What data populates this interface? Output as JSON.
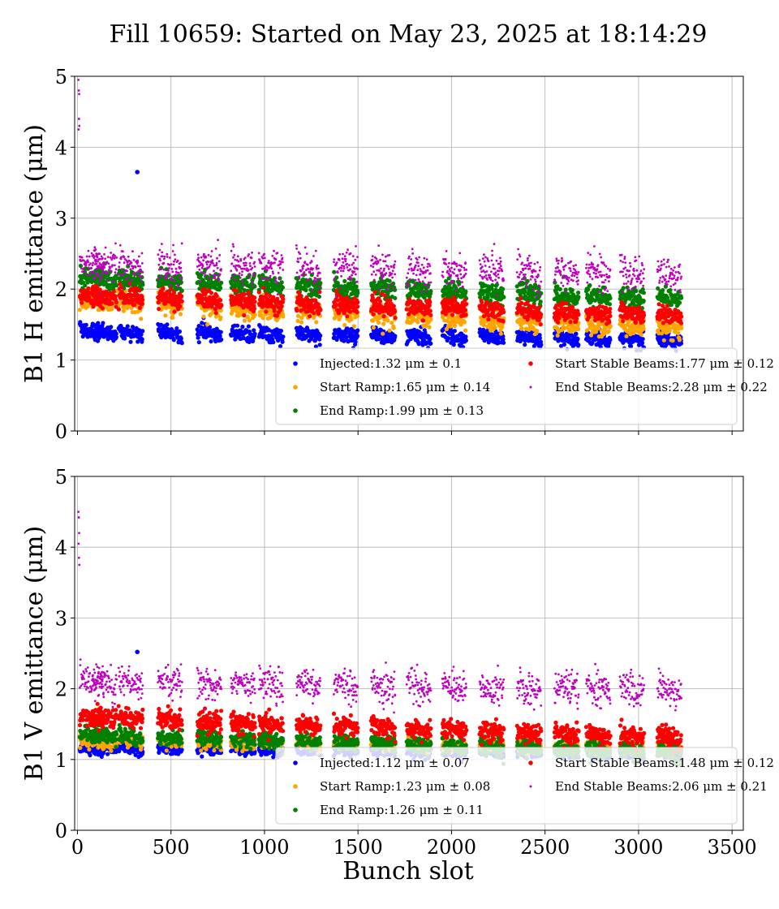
{
  "figure": {
    "suptitle": "Fill 10659: Started on May 23, 2025 at 18:14:29",
    "xlabel": "Bunch slot"
  },
  "chart_data": [
    {
      "type": "scatter",
      "ylabel": "B1 H emittance (μm)",
      "xlim": [
        -15,
        3560
      ],
      "ylim": [
        0,
        5
      ],
      "xticks": [
        0,
        500,
        1000,
        1500,
        2000,
        2500,
        3000,
        3500
      ],
      "yticks": [
        0,
        1,
        2,
        3,
        4,
        5
      ],
      "show_xticklabels": false,
      "grid": true,
      "legend_position": "lower-right",
      "trains": [
        12,
        80,
        220,
        430,
        640,
        820,
        970,
        1170,
        1370,
        1570,
        1760,
        1950,
        2150,
        2350,
        2550,
        2720,
        2900,
        3100
      ],
      "train_length": 130,
      "series": [
        {
          "name": "Injected",
          "mean": 1.32,
          "std": 0.1,
          "color": "#0000ff",
          "trend_start": 1.4,
          "trend_end": 1.28,
          "legend": "Injected:1.32 μm ± 0.1"
        },
        {
          "name": "Start Ramp",
          "mean": 1.65,
          "std": 0.14,
          "color": "#ffa500",
          "trend_start": 1.85,
          "trend_end": 1.45,
          "legend": "Start Ramp:1.65 μm ± 0.14"
        },
        {
          "name": "End Ramp",
          "mean": 1.99,
          "std": 0.13,
          "color": "#008000",
          "trend_start": 2.15,
          "trend_end": 1.85,
          "legend": "End Ramp:1.99 μm ± 0.13"
        },
        {
          "name": "Start Stable Beams",
          "mean": 1.77,
          "std": 0.12,
          "color": "#ff0000",
          "trend_start": 1.9,
          "trend_end": 1.62,
          "legend": "Start Stable Beams:1.77 μm ± 0.12"
        },
        {
          "name": "End Stable Beams",
          "mean": 2.28,
          "std": 0.22,
          "color": "#bf00bf",
          "trend_start": 2.35,
          "trend_end": 2.2,
          "legend": "End Stable Beams:2.28 μm ± 0.22"
        }
      ],
      "outliers": [
        {
          "series": "Injected",
          "x": 320,
          "y": 3.65
        },
        {
          "series": "End Stable Beams",
          "x": 5,
          "y": 4.95
        },
        {
          "series": "End Stable Beams",
          "x": 7,
          "y": 4.8
        },
        {
          "series": "End Stable Beams",
          "x": 9,
          "y": 4.75
        },
        {
          "series": "End Stable Beams",
          "x": 8,
          "y": 4.4
        },
        {
          "series": "End Stable Beams",
          "x": 10,
          "y": 4.3
        },
        {
          "series": "End Stable Beams",
          "x": 6,
          "y": 4.25
        }
      ]
    },
    {
      "type": "scatter",
      "ylabel": "B1 V emittance (μm)",
      "xlim": [
        -15,
        3560
      ],
      "ylim": [
        0,
        5
      ],
      "xticks": [
        0,
        500,
        1000,
        1500,
        2000,
        2500,
        3000,
        3500
      ],
      "yticks": [
        0,
        1,
        2,
        3,
        4,
        5
      ],
      "show_xticklabels": true,
      "grid": true,
      "legend_position": "lower-right",
      "trains": [
        12,
        80,
        220,
        430,
        640,
        820,
        970,
        1170,
        1370,
        1570,
        1760,
        1950,
        2150,
        2350,
        2550,
        2720,
        2900,
        3100
      ],
      "train_length": 130,
      "series": [
        {
          "name": "Injected",
          "mean": 1.12,
          "std": 0.07,
          "color": "#0000ff",
          "trend_start": 1.15,
          "trend_end": 1.08,
          "legend": "Injected:1.12 μm ± 0.07"
        },
        {
          "name": "Start Ramp",
          "mean": 1.23,
          "std": 0.08,
          "color": "#ffa500",
          "trend_start": 1.27,
          "trend_end": 1.15,
          "legend": "Start Ramp:1.23 μm ± 0.08"
        },
        {
          "name": "End Ramp",
          "mean": 1.26,
          "std": 0.11,
          "color": "#008000",
          "trend_start": 1.35,
          "trend_end": 1.1,
          "legend": "End Ramp:1.26 μm ± 0.11"
        },
        {
          "name": "Start Stable Beams",
          "mean": 1.48,
          "std": 0.12,
          "color": "#ff0000",
          "trend_start": 1.6,
          "trend_end": 1.3,
          "legend": "Start Stable Beams:1.48 μm ± 0.12"
        },
        {
          "name": "End Stable Beams",
          "mean": 2.06,
          "std": 0.21,
          "color": "#bf00bf",
          "trend_start": 2.1,
          "trend_end": 1.98,
          "legend": "End Stable Beams:2.06 μm ± 0.21"
        }
      ],
      "outliers": [
        {
          "series": "Injected",
          "x": 320,
          "y": 2.52
        },
        {
          "series": "End Stable Beams",
          "x": 5,
          "y": 4.5
        },
        {
          "series": "End Stable Beams",
          "x": 7,
          "y": 4.42
        },
        {
          "series": "End Stable Beams",
          "x": 9,
          "y": 4.2
        },
        {
          "series": "End Stable Beams",
          "x": 6,
          "y": 4.05
        },
        {
          "series": "End Stable Beams",
          "x": 8,
          "y": 3.85
        },
        {
          "series": "End Stable Beams",
          "x": 10,
          "y": 3.75
        }
      ]
    }
  ]
}
